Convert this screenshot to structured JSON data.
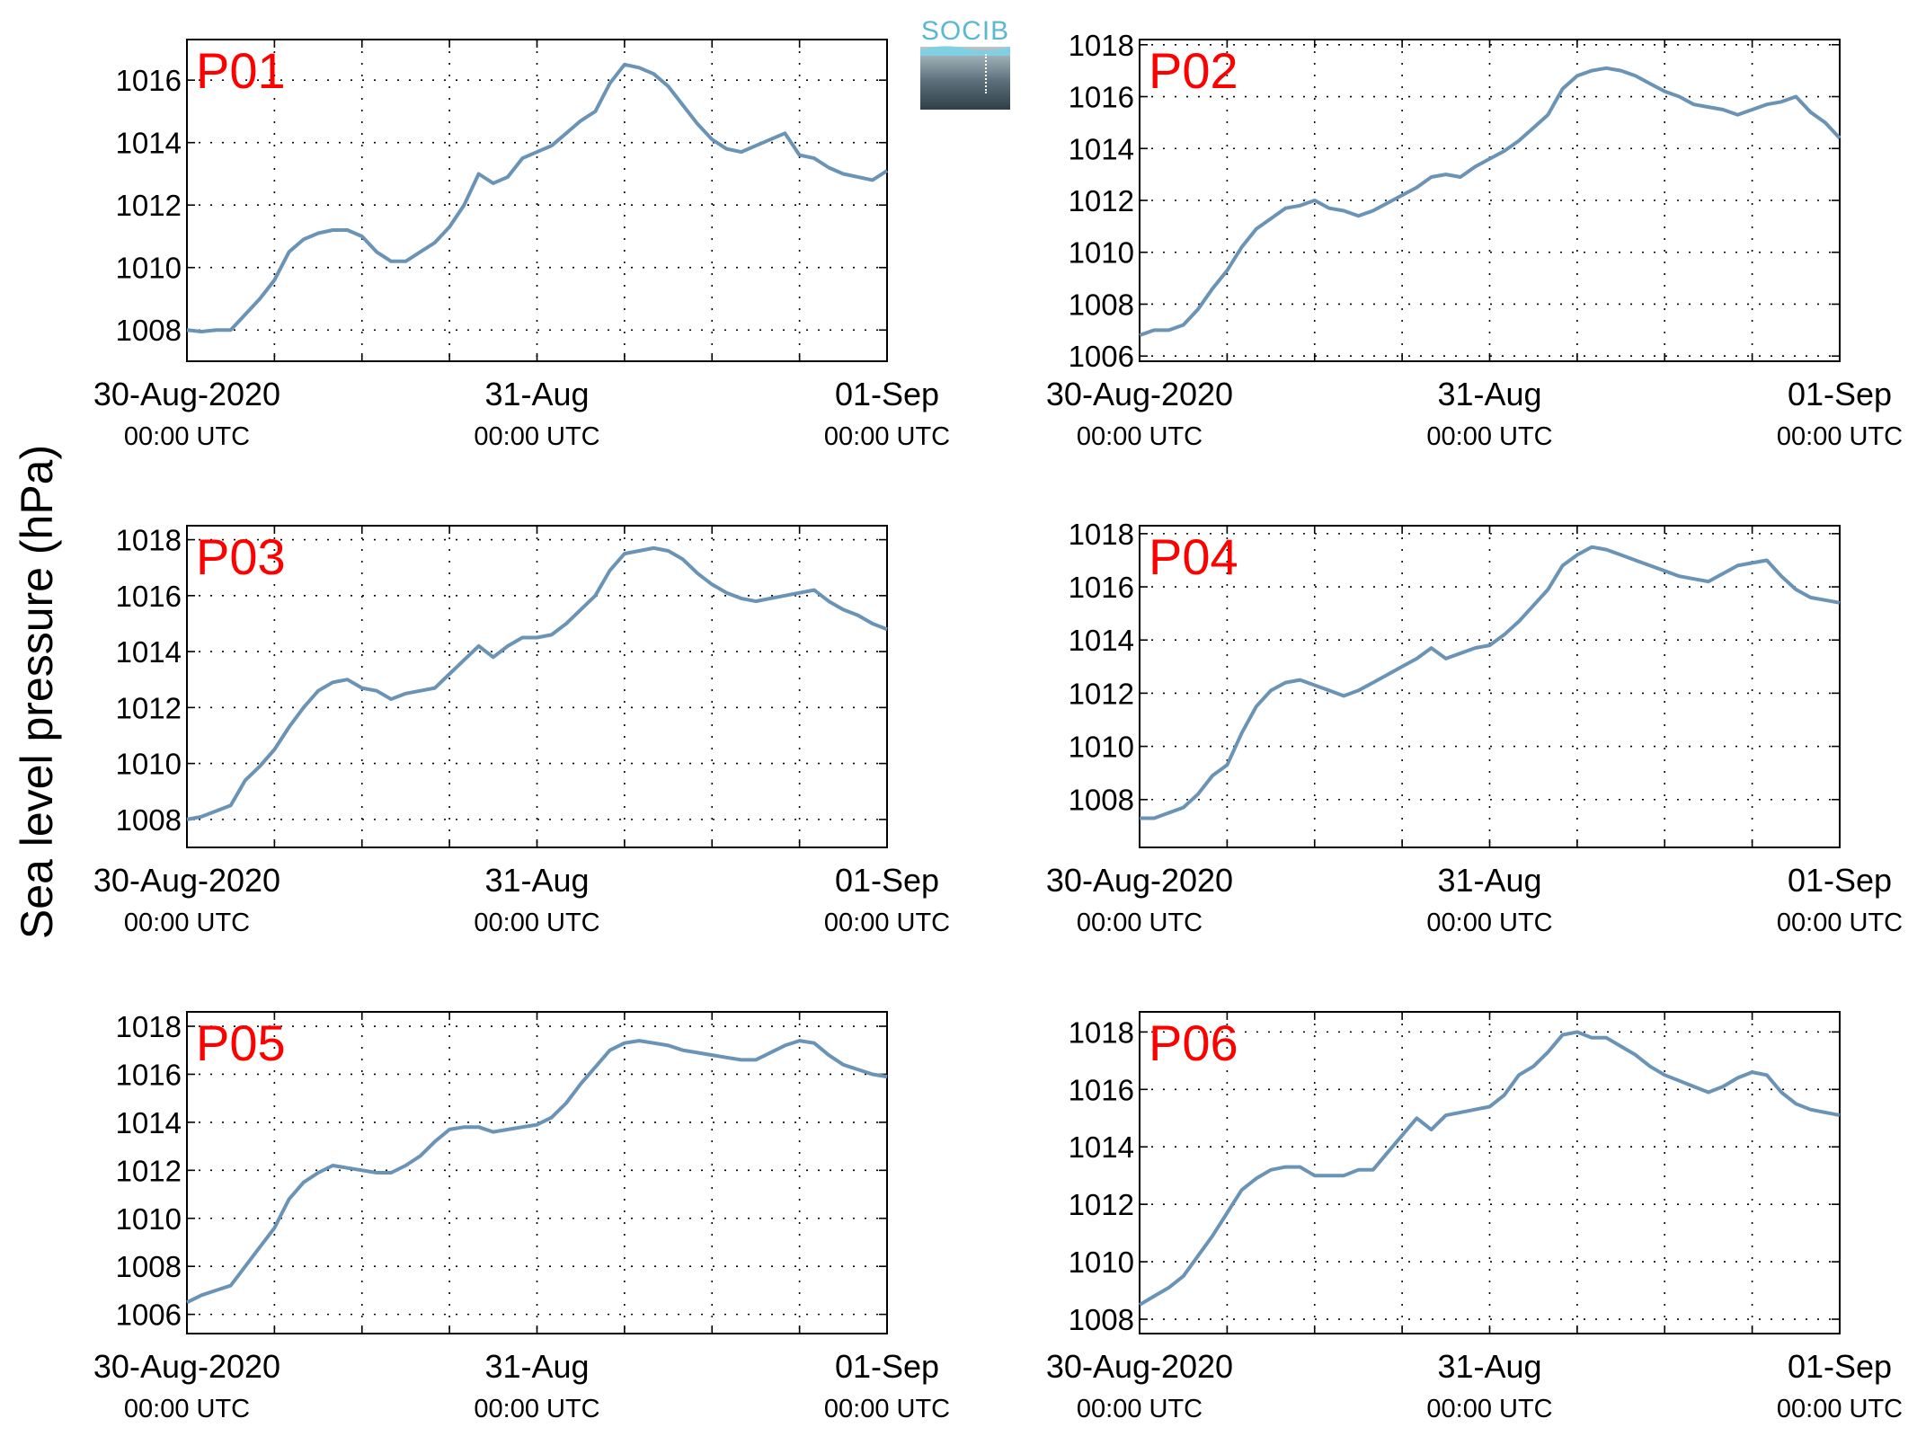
{
  "figure": {
    "ylabel": "Sea level pressure (hPa)",
    "logo_text": "SOCIB",
    "accent_line_color": "#6a93b6",
    "panel_label_color": "#ff0000"
  },
  "chart_data": [
    {
      "type": "line",
      "label": "P01",
      "x_tick_labels": [
        [
          "30-Aug-2020",
          "00:00 UTC"
        ],
        [
          "31-Aug",
          "00:00 UTC"
        ],
        [
          "01-Sep",
          "00:00 UTC"
        ]
      ],
      "x_range_hours": [
        0,
        48
      ],
      "ylim": [
        1007,
        1017.3
      ],
      "yticks": [
        1008,
        1010,
        1012,
        1014,
        1016
      ],
      "grid": true,
      "series": [
        {
          "x_hours": [
            0,
            1,
            2,
            3,
            4,
            5,
            6,
            7,
            8,
            9,
            10,
            11,
            12,
            13,
            14,
            15,
            16,
            17,
            18,
            19,
            20,
            21,
            22,
            23,
            24,
            25,
            26,
            27,
            28,
            29,
            30,
            31,
            32,
            33,
            34,
            35,
            36,
            37,
            38,
            39,
            40,
            41,
            42,
            43,
            44,
            45,
            46,
            47,
            48
          ],
          "values": [
            1008.0,
            1007.95,
            1008.0,
            1008.0,
            1008.5,
            1009.0,
            1009.6,
            1010.5,
            1010.9,
            1011.1,
            1011.2,
            1011.2,
            1011.0,
            1010.5,
            1010.2,
            1010.2,
            1010.5,
            1010.8,
            1011.3,
            1012.0,
            1013.0,
            1012.7,
            1012.9,
            1013.5,
            1013.7,
            1013.9,
            1014.3,
            1014.7,
            1015.0,
            1015.9,
            1016.5,
            1016.4,
            1016.2,
            1015.8,
            1015.2,
            1014.6,
            1014.1,
            1013.8,
            1013.7,
            1013.9,
            1014.1,
            1014.3,
            1013.6,
            1013.5,
            1013.2,
            1013.0,
            1012.9,
            1012.8,
            1013.1
          ]
        }
      ]
    },
    {
      "type": "line",
      "label": "P02",
      "x_tick_labels": [
        [
          "30-Aug-2020",
          "00:00 UTC"
        ],
        [
          "31-Aug",
          "00:00 UTC"
        ],
        [
          "01-Sep",
          "00:00 UTC"
        ]
      ],
      "x_range_hours": [
        0,
        48
      ],
      "ylim": [
        1005.8,
        1018.2
      ],
      "yticks": [
        1006,
        1008,
        1010,
        1012,
        1014,
        1016,
        1018
      ],
      "grid": true,
      "series": [
        {
          "x_hours": [
            0,
            1,
            2,
            3,
            4,
            5,
            6,
            7,
            8,
            9,
            10,
            11,
            12,
            13,
            14,
            15,
            16,
            17,
            18,
            19,
            20,
            21,
            22,
            23,
            24,
            25,
            26,
            27,
            28,
            29,
            30,
            31,
            32,
            33,
            34,
            35,
            36,
            37,
            38,
            39,
            40,
            41,
            42,
            43,
            44,
            45,
            46,
            47,
            48
          ],
          "values": [
            1006.8,
            1007.0,
            1007.0,
            1007.2,
            1007.8,
            1008.6,
            1009.3,
            1010.2,
            1010.9,
            1011.3,
            1011.7,
            1011.8,
            1012.0,
            1011.7,
            1011.6,
            1011.4,
            1011.6,
            1011.9,
            1012.2,
            1012.5,
            1012.9,
            1013.0,
            1012.9,
            1013.3,
            1013.6,
            1013.9,
            1014.3,
            1014.8,
            1015.3,
            1016.3,
            1016.8,
            1017.0,
            1017.1,
            1017.0,
            1016.8,
            1016.5,
            1016.2,
            1016.0,
            1015.7,
            1015.6,
            1015.5,
            1015.3,
            1015.5,
            1015.7,
            1015.8,
            1016.0,
            1015.4,
            1015.0,
            1014.4
          ]
        }
      ]
    },
    {
      "type": "line",
      "label": "P03",
      "x_tick_labels": [
        [
          "30-Aug-2020",
          "00:00 UTC"
        ],
        [
          "31-Aug",
          "00:00 UTC"
        ],
        [
          "01-Sep",
          "00:00 UTC"
        ]
      ],
      "x_range_hours": [
        0,
        48
      ],
      "ylim": [
        1007,
        1018.5
      ],
      "yticks": [
        1008,
        1010,
        1012,
        1014,
        1016,
        1018
      ],
      "grid": true,
      "series": [
        {
          "x_hours": [
            0,
            1,
            2,
            3,
            4,
            5,
            6,
            7,
            8,
            9,
            10,
            11,
            12,
            13,
            14,
            15,
            16,
            17,
            18,
            19,
            20,
            21,
            22,
            23,
            24,
            25,
            26,
            27,
            28,
            29,
            30,
            31,
            32,
            33,
            34,
            35,
            36,
            37,
            38,
            39,
            40,
            41,
            42,
            43,
            44,
            45,
            46,
            47,
            48
          ],
          "values": [
            1008.0,
            1008.1,
            1008.3,
            1008.5,
            1009.4,
            1009.9,
            1010.5,
            1011.3,
            1012.0,
            1012.6,
            1012.9,
            1013.0,
            1012.7,
            1012.6,
            1012.3,
            1012.5,
            1012.6,
            1012.7,
            1013.2,
            1013.7,
            1014.2,
            1013.8,
            1014.2,
            1014.5,
            1014.5,
            1014.6,
            1015.0,
            1015.5,
            1016.0,
            1016.9,
            1017.5,
            1017.6,
            1017.7,
            1017.6,
            1017.3,
            1016.8,
            1016.4,
            1016.1,
            1015.9,
            1015.8,
            1015.9,
            1016.0,
            1016.1,
            1016.2,
            1015.8,
            1015.5,
            1015.3,
            1015.0,
            1014.8
          ]
        }
      ]
    },
    {
      "type": "line",
      "label": "P04",
      "x_tick_labels": [
        [
          "30-Aug-2020",
          "00:00 UTC"
        ],
        [
          "31-Aug",
          "00:00 UTC"
        ],
        [
          "01-Sep",
          "00:00 UTC"
        ]
      ],
      "x_range_hours": [
        0,
        48
      ],
      "ylim": [
        1006.2,
        1018.3
      ],
      "yticks": [
        1008,
        1010,
        1012,
        1014,
        1016,
        1018
      ],
      "grid": true,
      "series": [
        {
          "x_hours": [
            0,
            1,
            2,
            3,
            4,
            5,
            6,
            7,
            8,
            9,
            10,
            11,
            12,
            13,
            14,
            15,
            16,
            17,
            18,
            19,
            20,
            21,
            22,
            23,
            24,
            25,
            26,
            27,
            28,
            29,
            30,
            31,
            32,
            33,
            34,
            35,
            36,
            37,
            38,
            39,
            40,
            41,
            42,
            43,
            44,
            45,
            46,
            47,
            48
          ],
          "values": [
            1007.3,
            1007.3,
            1007.5,
            1007.7,
            1008.2,
            1008.9,
            1009.3,
            1010.5,
            1011.5,
            1012.1,
            1012.4,
            1012.5,
            1012.3,
            1012.1,
            1011.9,
            1012.1,
            1012.4,
            1012.7,
            1013.0,
            1013.3,
            1013.7,
            1013.3,
            1013.5,
            1013.7,
            1013.8,
            1014.2,
            1014.7,
            1015.3,
            1015.9,
            1016.8,
            1017.2,
            1017.5,
            1017.4,
            1017.2,
            1017.0,
            1016.8,
            1016.6,
            1016.4,
            1016.3,
            1016.2,
            1016.5,
            1016.8,
            1016.9,
            1017.0,
            1016.4,
            1015.9,
            1015.6,
            1015.5,
            1015.4
          ]
        }
      ]
    },
    {
      "type": "line",
      "label": "P05",
      "x_tick_labels": [
        [
          "30-Aug-2020",
          "00:00 UTC"
        ],
        [
          "31-Aug",
          "00:00 UTC"
        ],
        [
          "01-Sep",
          "00:00 UTC"
        ]
      ],
      "x_range_hours": [
        0,
        48
      ],
      "ylim": [
        1005.2,
        1018.6
      ],
      "yticks": [
        1006,
        1008,
        1010,
        1012,
        1014,
        1016,
        1018
      ],
      "grid": true,
      "series": [
        {
          "x_hours": [
            0,
            1,
            2,
            3,
            4,
            5,
            6,
            7,
            8,
            9,
            10,
            11,
            12,
            13,
            14,
            15,
            16,
            17,
            18,
            19,
            20,
            21,
            22,
            23,
            24,
            25,
            26,
            27,
            28,
            29,
            30,
            31,
            32,
            33,
            34,
            35,
            36,
            37,
            38,
            39,
            40,
            41,
            42,
            43,
            44,
            45,
            46,
            47,
            48
          ],
          "values": [
            1006.5,
            1006.8,
            1007.0,
            1007.2,
            1008.0,
            1008.8,
            1009.6,
            1010.8,
            1011.5,
            1011.9,
            1012.2,
            1012.1,
            1012.0,
            1011.9,
            1011.9,
            1012.2,
            1012.6,
            1013.2,
            1013.7,
            1013.8,
            1013.8,
            1013.6,
            1013.7,
            1013.8,
            1013.9,
            1014.2,
            1014.8,
            1015.6,
            1016.3,
            1017.0,
            1017.3,
            1017.4,
            1017.3,
            1017.2,
            1017.0,
            1016.9,
            1016.8,
            1016.7,
            1016.6,
            1016.6,
            1016.9,
            1017.2,
            1017.4,
            1017.3,
            1016.8,
            1016.4,
            1016.2,
            1016.0,
            1015.9
          ]
        }
      ]
    },
    {
      "type": "line",
      "label": "P06",
      "x_tick_labels": [
        [
          "30-Aug-2020",
          "00:00 UTC"
        ],
        [
          "31-Aug",
          "00:00 UTC"
        ],
        [
          "01-Sep",
          "00:00 UTC"
        ]
      ],
      "x_range_hours": [
        0,
        48
      ],
      "ylim": [
        1007.5,
        1018.7
      ],
      "yticks": [
        1008,
        1010,
        1012,
        1014,
        1016,
        1018
      ],
      "grid": true,
      "series": [
        {
          "x_hours": [
            0,
            1,
            2,
            3,
            4,
            5,
            6,
            7,
            8,
            9,
            10,
            11,
            12,
            13,
            14,
            15,
            16,
            17,
            18,
            19,
            20,
            21,
            22,
            23,
            24,
            25,
            26,
            27,
            28,
            29,
            30,
            31,
            32,
            33,
            34,
            35,
            36,
            37,
            38,
            39,
            40,
            41,
            42,
            43,
            44,
            45,
            46,
            47,
            48
          ],
          "values": [
            1008.5,
            1008.8,
            1009.1,
            1009.5,
            1010.2,
            1010.9,
            1011.7,
            1012.5,
            1012.9,
            1013.2,
            1013.3,
            1013.3,
            1013.0,
            1013.0,
            1013.0,
            1013.2,
            1013.2,
            1013.8,
            1014.4,
            1015.0,
            1014.6,
            1015.1,
            1015.2,
            1015.3,
            1015.4,
            1015.8,
            1016.5,
            1016.8,
            1017.3,
            1017.9,
            1018.0,
            1017.8,
            1017.8,
            1017.5,
            1017.2,
            1016.8,
            1016.5,
            1016.3,
            1016.1,
            1015.9,
            1016.1,
            1016.4,
            1016.6,
            1016.5,
            1015.9,
            1015.5,
            1015.3,
            1015.2,
            1015.1
          ]
        }
      ]
    }
  ]
}
